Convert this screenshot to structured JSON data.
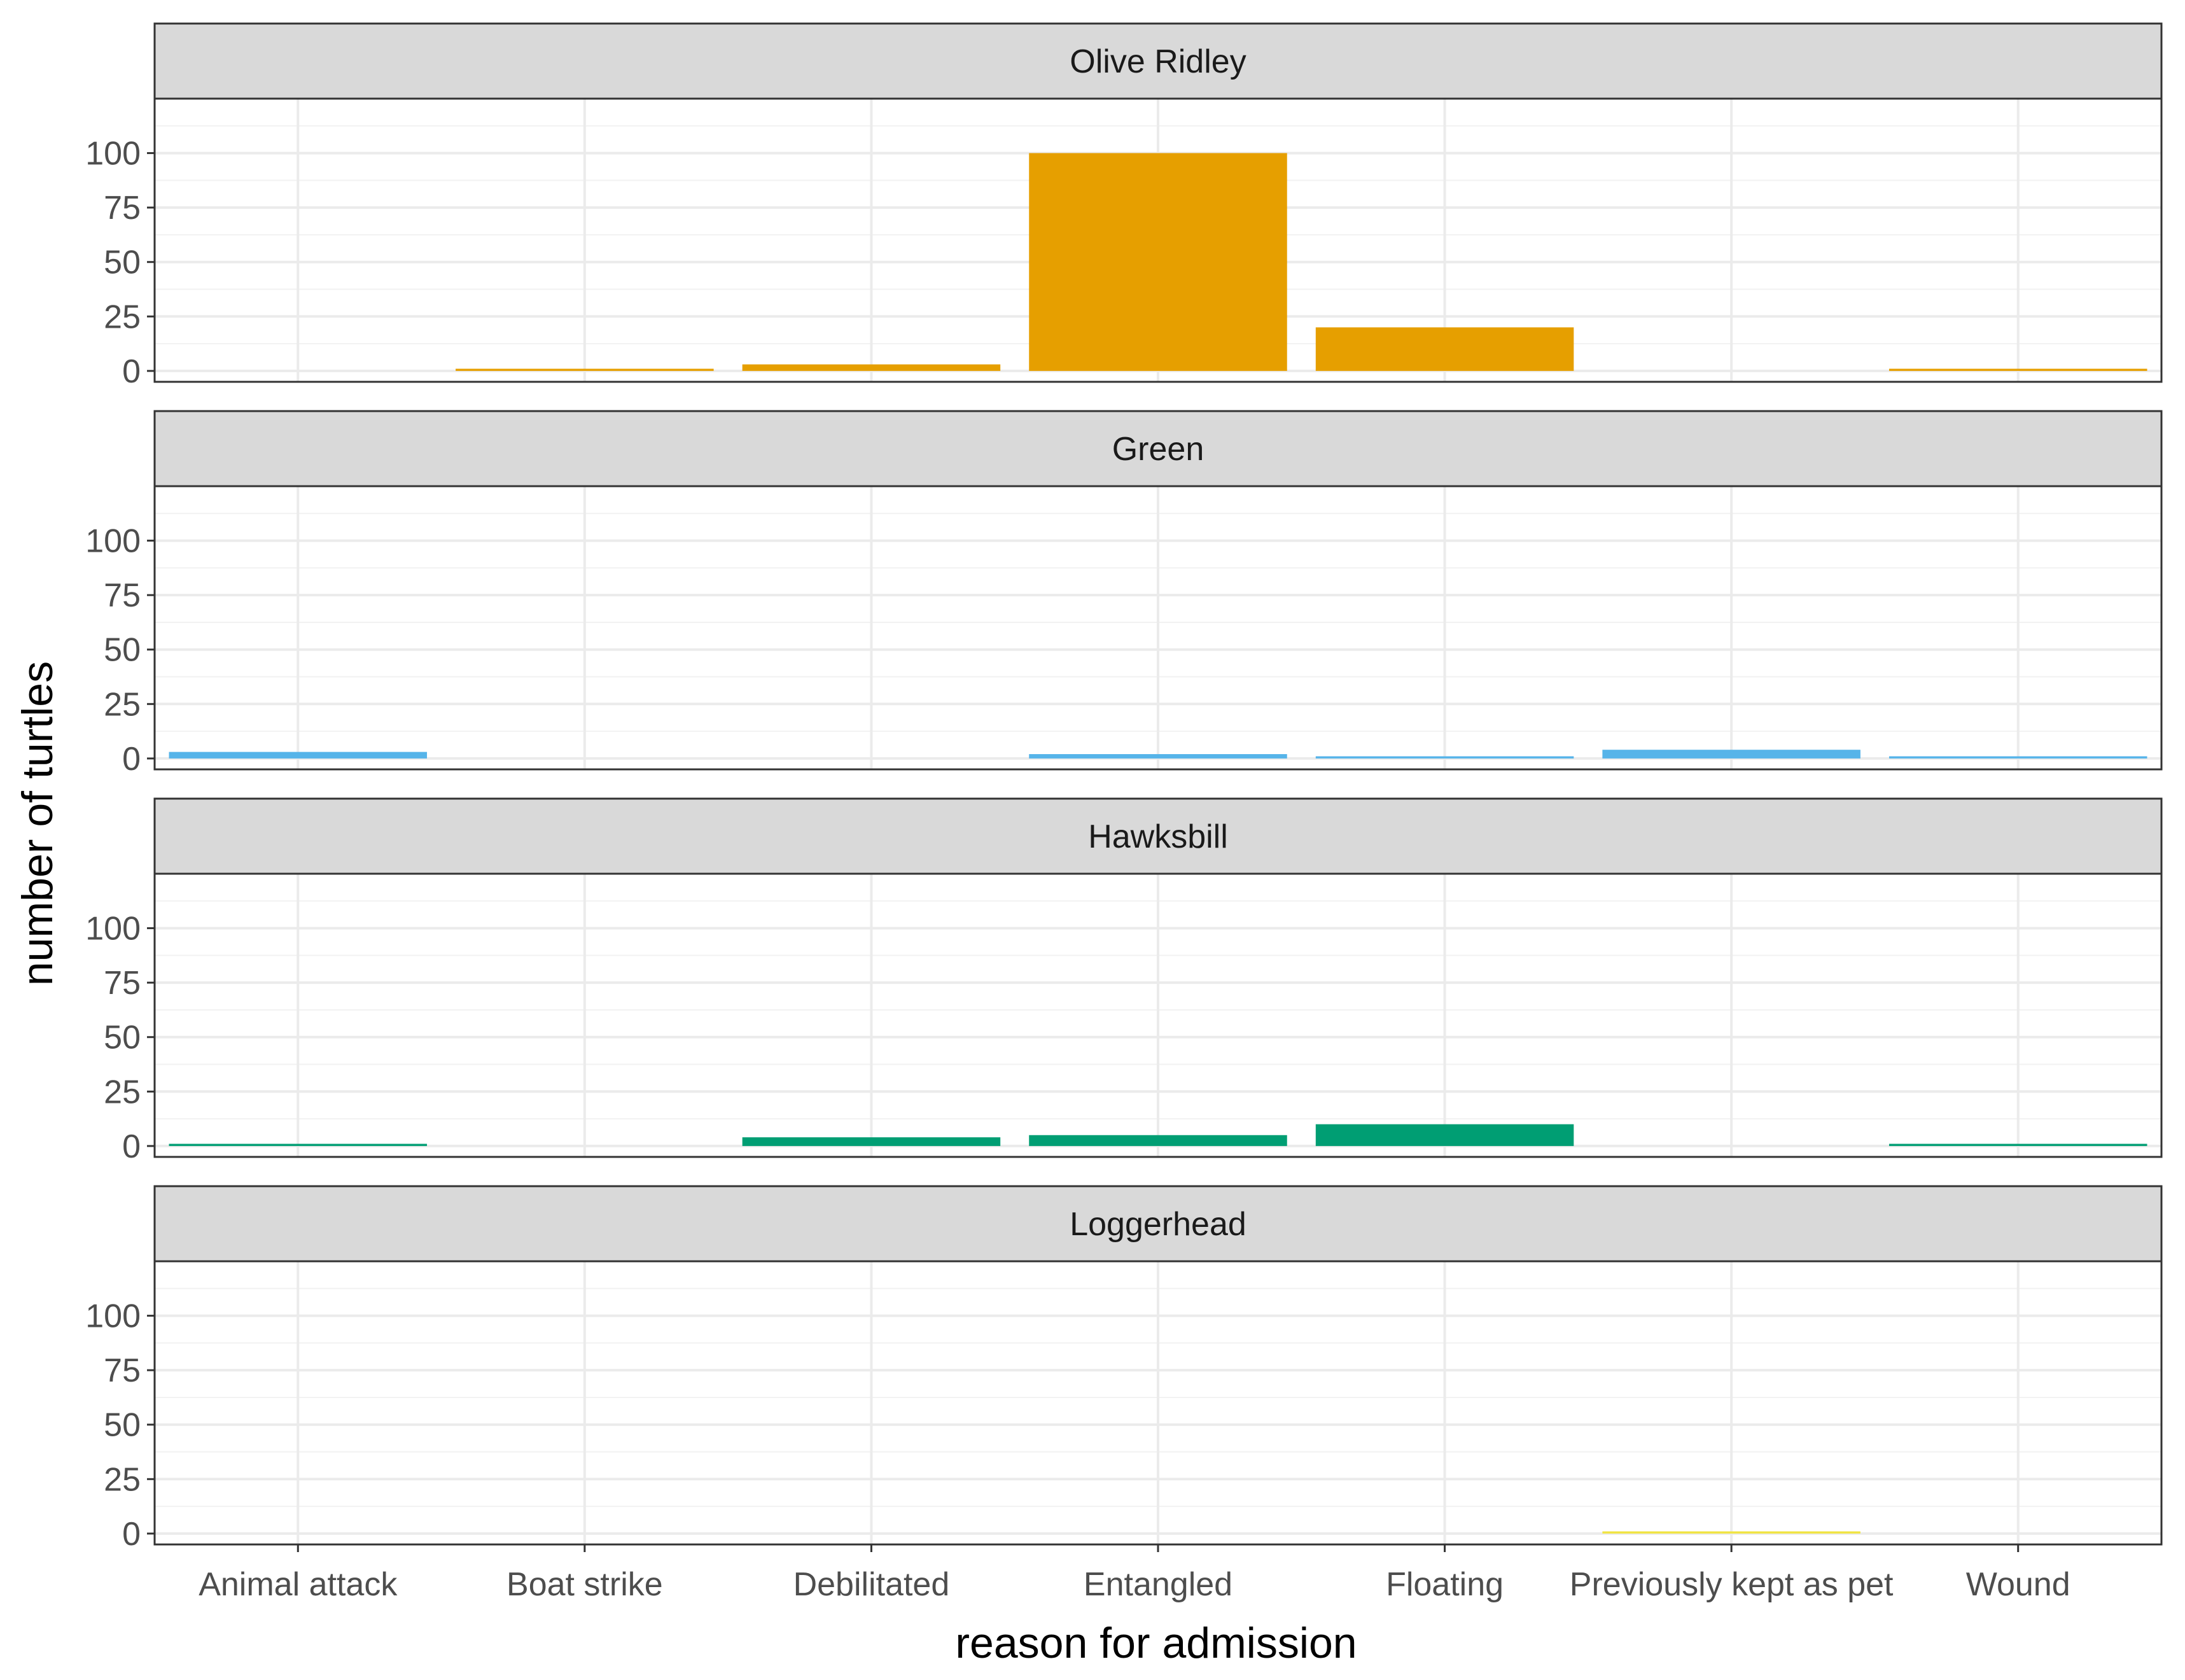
{
  "chart_data": {
    "type": "bar",
    "layout": "faceted, 4 rows stacked vertically, shared x axis",
    "xlabel": "reason for admission",
    "ylabel": "number of turtles",
    "categories": [
      "Animal attack",
      "Boat strike",
      "Debilitated",
      "Entangled",
      "Floating",
      "Previously kept as pet",
      "Wound"
    ],
    "ylim": [
      0,
      125
    ],
    "yticks": [
      0,
      25,
      50,
      75,
      100
    ],
    "grid": true,
    "legend": "none",
    "facets": [
      {
        "name": "Olive Ridley",
        "color": "#E69F00",
        "values": [
          0,
          1,
          3,
          100,
          20,
          0,
          1
        ]
      },
      {
        "name": "Green",
        "color": "#56B4E9",
        "values": [
          3,
          0,
          0,
          2,
          1,
          4,
          1
        ]
      },
      {
        "name": "Hawksbill",
        "color": "#009E73",
        "values": [
          1,
          0,
          4,
          5,
          10,
          0,
          1
        ]
      },
      {
        "name": "Loggerhead",
        "color": "#F0E442",
        "values": [
          0,
          0,
          0,
          0,
          0,
          1,
          0
        ]
      }
    ]
  }
}
